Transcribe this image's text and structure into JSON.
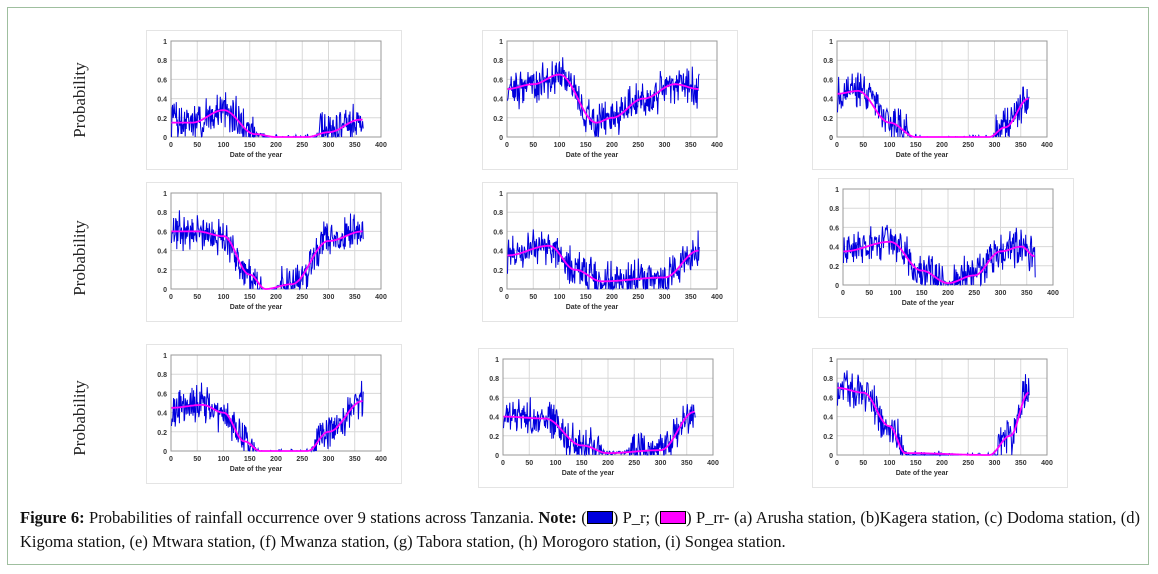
{
  "y_axis_label": "Probability",
  "colors": {
    "p_r": "#0000dd",
    "p_rr": "#ff00ff",
    "grid": "#d8d8d8"
  },
  "chart_data": [
    {
      "id": "a",
      "station": "Arusha",
      "type": "line",
      "xlabel": "Date of the year",
      "xlim": [
        0,
        400
      ],
      "ylim": [
        0,
        1
      ],
      "xticks": [
        "0",
        "50",
        "100",
        "150",
        "200",
        "250",
        "300",
        "350",
        "400"
      ],
      "yticks": [
        "0",
        "0.2",
        "0.4",
        "0.6",
        "0.8",
        "1"
      ],
      "series": [
        {
          "name": "P_r",
          "style": "noisy daily"
        },
        {
          "name": "P_rr",
          "smooth": [
            [
              0,
              0.15
            ],
            [
              40,
              0.15
            ],
            [
              100,
              0.28
            ],
            [
              160,
              0.03
            ],
            [
              200,
              0
            ],
            [
              260,
              0
            ],
            [
              300,
              0.05
            ],
            [
              360,
              0.18
            ]
          ]
        }
      ]
    },
    {
      "id": "b",
      "station": "Kagera",
      "type": "line",
      "xlabel": "Date of the year",
      "xlim": [
        0,
        400
      ],
      "ylim": [
        0,
        1
      ],
      "xticks": [
        "0",
        "50",
        "100",
        "150",
        "200",
        "250",
        "300",
        "350",
        "400"
      ],
      "yticks": [
        "0",
        "0.2",
        "0.4",
        "0.6",
        "0.8",
        "1"
      ],
      "series": [
        {
          "name": "P_r",
          "style": "noisy daily"
        },
        {
          "name": "P_rr",
          "smooth": [
            [
              0,
              0.5
            ],
            [
              50,
              0.55
            ],
            [
              100,
              0.65
            ],
            [
              170,
              0.15
            ],
            [
              200,
              0.2
            ],
            [
              260,
              0.4
            ],
            [
              320,
              0.55
            ],
            [
              365,
              0.5
            ]
          ]
        }
      ]
    },
    {
      "id": "c",
      "station": "Dodoma",
      "type": "line",
      "xlabel": "Date of the year",
      "xlim": [
        0,
        400
      ],
      "ylim": [
        0,
        1
      ],
      "xticks": [
        "0",
        "50",
        "100",
        "150",
        "200",
        "250",
        "300",
        "350",
        "400"
      ],
      "yticks": [
        "0",
        "0.2",
        "0.4",
        "0.6",
        "0.8",
        "1"
      ],
      "series": [
        {
          "name": "P_r",
          "style": "noisy daily"
        },
        {
          "name": "P_rr",
          "smooth": [
            [
              0,
              0.45
            ],
            [
              40,
              0.48
            ],
            [
              100,
              0.15
            ],
            [
              150,
              0
            ],
            [
              290,
              0
            ],
            [
              320,
              0.1
            ],
            [
              365,
              0.4
            ]
          ]
        }
      ]
    },
    {
      "id": "d",
      "station": "Kigoma",
      "type": "line",
      "xlabel": "Date of the year",
      "xlim": [
        0,
        400
      ],
      "ylim": [
        0,
        1
      ],
      "xticks": [
        "0",
        "50",
        "100",
        "150",
        "200",
        "250",
        "300",
        "350",
        "400"
      ],
      "yticks": [
        "0",
        "0.2",
        "0.4",
        "0.6",
        "0.8",
        "1"
      ],
      "series": [
        {
          "name": "P_r",
          "style": "noisy daily"
        },
        {
          "name": "P_rr",
          "smooth": [
            [
              0,
              0.6
            ],
            [
              50,
              0.6
            ],
            [
              100,
              0.55
            ],
            [
              150,
              0.15
            ],
            [
              180,
              0
            ],
            [
              230,
              0.05
            ],
            [
              300,
              0.5
            ],
            [
              365,
              0.6
            ]
          ]
        }
      ]
    },
    {
      "id": "e",
      "station": "Mtwara",
      "type": "line",
      "xlabel": "Date of the year",
      "xlim": [
        0,
        400
      ],
      "ylim": [
        0,
        1
      ],
      "xticks": [
        "0",
        "50",
        "100",
        "150",
        "200",
        "250",
        "300",
        "350",
        "400"
      ],
      "yticks": [
        "0",
        "0.2",
        "0.4",
        "0.6",
        "0.8",
        "1"
      ],
      "series": [
        {
          "name": "P_r",
          "style": "noisy daily"
        },
        {
          "name": "P_rr",
          "smooth": [
            [
              0,
              0.35
            ],
            [
              80,
              0.45
            ],
            [
              130,
              0.2
            ],
            [
              180,
              0.08
            ],
            [
              300,
              0.12
            ],
            [
              365,
              0.4
            ]
          ]
        }
      ]
    },
    {
      "id": "f",
      "station": "Mwanza",
      "type": "line",
      "xlabel": "Date of the year",
      "xlim": [
        0,
        400
      ],
      "ylim": [
        0,
        1
      ],
      "xticks": [
        "0",
        "50",
        "100",
        "150",
        "200",
        "250",
        "300",
        "350",
        "400"
      ],
      "yticks": [
        "0",
        "0.2",
        "0.4",
        "0.6",
        "0.8",
        "1"
      ],
      "series": [
        {
          "name": "P_r",
          "style": "noisy daily"
        },
        {
          "name": "P_rr",
          "smooth": [
            [
              0,
              0.35
            ],
            [
              90,
              0.45
            ],
            [
              150,
              0.15
            ],
            [
              200,
              0.02
            ],
            [
              250,
              0.1
            ],
            [
              300,
              0.35
            ],
            [
              340,
              0.4
            ],
            [
              365,
              0.3
            ]
          ]
        }
      ]
    },
    {
      "id": "g",
      "station": "Tabora",
      "type": "line",
      "xlabel": "Date of the year",
      "xlim": [
        0,
        400
      ],
      "ylim": [
        0,
        1
      ],
      "xticks": [
        "0",
        "50",
        "100",
        "150",
        "200",
        "250",
        "300",
        "350",
        "400"
      ],
      "yticks": [
        "0",
        "0.2",
        "0.4",
        "0.6",
        "0.8",
        "1"
      ],
      "series": [
        {
          "name": "P_r",
          "style": "noisy daily"
        },
        {
          "name": "P_rr",
          "smooth": [
            [
              0,
              0.45
            ],
            [
              60,
              0.48
            ],
            [
              100,
              0.4
            ],
            [
              140,
              0.1
            ],
            [
              170,
              0
            ],
            [
              260,
              0
            ],
            [
              300,
              0.2
            ],
            [
              365,
              0.52
            ]
          ]
        }
      ]
    },
    {
      "id": "h",
      "station": "Morogoro",
      "type": "line",
      "xlabel": "Date of the year",
      "xlim": [
        0,
        400
      ],
      "ylim": [
        0,
        1
      ],
      "xticks": [
        "0",
        "50",
        "100",
        "150",
        "200",
        "250",
        "300",
        "350",
        "400"
      ],
      "yticks": [
        "0",
        "0.2",
        "0.4",
        "0.6",
        "0.8",
        "1"
      ],
      "series": [
        {
          "name": "P_r",
          "style": "noisy daily"
        },
        {
          "name": "P_rr",
          "smooth": [
            [
              0,
              0.4
            ],
            [
              80,
              0.38
            ],
            [
              150,
              0.1
            ],
            [
              200,
              0.02
            ],
            [
              300,
              0.05
            ],
            [
              365,
              0.45
            ]
          ]
        }
      ]
    },
    {
      "id": "i",
      "station": "Songea",
      "type": "line",
      "xlabel": "Date of the year",
      "xlim": [
        0,
        400
      ],
      "ylim": [
        0,
        1
      ],
      "xticks": [
        "0",
        "50",
        "100",
        "150",
        "200",
        "250",
        "300",
        "350",
        "400"
      ],
      "yticks": [
        "0",
        "0.2",
        "0.4",
        "0.6",
        "0.8",
        "1"
      ],
      "series": [
        {
          "name": "P_r",
          "style": "noisy daily"
        },
        {
          "name": "P_rr",
          "smooth": [
            [
              0,
              0.7
            ],
            [
              50,
              0.65
            ],
            [
              100,
              0.3
            ],
            [
              130,
              0.02
            ],
            [
              290,
              0
            ],
            [
              330,
              0.2
            ],
            [
              365,
              0.65
            ]
          ]
        }
      ]
    }
  ],
  "caption": {
    "figure_label": "Figure 6:",
    "text": " Probabilities of rainfall occurrence over 9 stations across Tanzania. ",
    "note_label": "Note:",
    "open1": " (",
    "legend1": ") P_r; (",
    "legend2": ") P_rr- (a) Arusha station, (b)Kagera station, (c) Dodoma station, (d) Kigoma station, (e) Mtwara station, (f) Mwanza station, (g) Tabora station, (h) Morogoro station, (i) Songea station."
  }
}
